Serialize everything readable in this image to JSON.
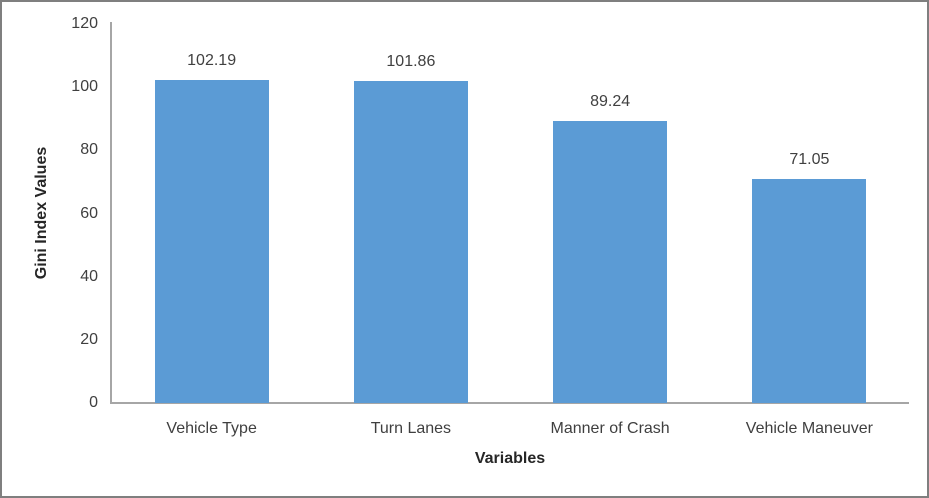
{
  "chart_data": {
    "type": "bar",
    "categories": [
      "Vehicle Type",
      "Turn Lanes",
      "Manner of Crash",
      "Vehicle Maneuver"
    ],
    "values": [
      102.19,
      101.86,
      89.24,
      71.05
    ],
    "value_labels": [
      "102.19",
      "101.86",
      "89.24",
      "71.05"
    ],
    "title": "",
    "xlabel": "Variables",
    "ylabel": "Gini Index Values",
    "ylim": [
      0,
      120
    ],
    "yticks": [
      0,
      20,
      40,
      60,
      80,
      100,
      120
    ],
    "legend_position": "none",
    "grid": false,
    "colors": {
      "bar_fill": "#5b9bd5",
      "axis_line": "#a6a6a6",
      "tick_text": "#3f3f3f",
      "data_label_text": "#404040",
      "axis_title_text": "#262626",
      "frame_border": "#7f7f7f",
      "background": "#ffffff"
    }
  }
}
